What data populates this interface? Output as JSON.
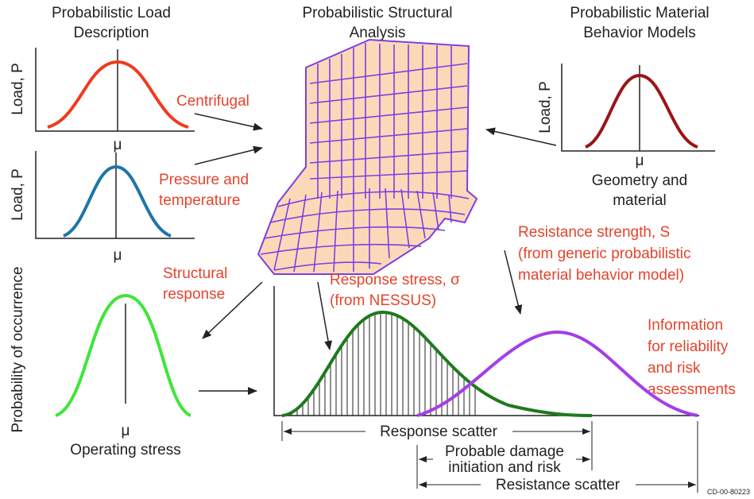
{
  "titles": {
    "load": [
      "Probabilistic Load",
      "Description"
    ],
    "structural": [
      "Probabilistic Structural",
      "Analysis"
    ],
    "material": [
      "Probabilistic Material",
      "Behavior Models"
    ]
  },
  "panels": {
    "centrifugal": {
      "axis_label": "Load, P",
      "mean": "μ"
    },
    "pressure": {
      "axis_label": "Load, P",
      "mean": "μ"
    },
    "material": {
      "axis_label": "Load, P",
      "mean": "μ",
      "caption": [
        "Geometry and",
        "material"
      ]
    },
    "operating": {
      "axis_label": "Probability of occurrence",
      "mean": "μ",
      "caption": "Operating stress"
    }
  },
  "annotations": {
    "centrifugal": "Centrifugal",
    "pressure": [
      "Pressure and",
      "temperature"
    ],
    "structural_response": [
      "Structural",
      "response"
    ],
    "response_stress": [
      "Response stress, σ",
      "(from NESSUS)"
    ],
    "resistance_strength": [
      "Resistance strength, S",
      "(from generic probabilistic",
      "material behavior model)"
    ],
    "information": [
      "Information",
      "for reliability",
      "and risk",
      "assessments"
    ]
  },
  "scatter": {
    "response": "Response scatter",
    "damage": [
      "Probable damage",
      "initiation and risk"
    ],
    "resistance": "Resistance scatter"
  },
  "figure_id": "CD-00-80223"
}
